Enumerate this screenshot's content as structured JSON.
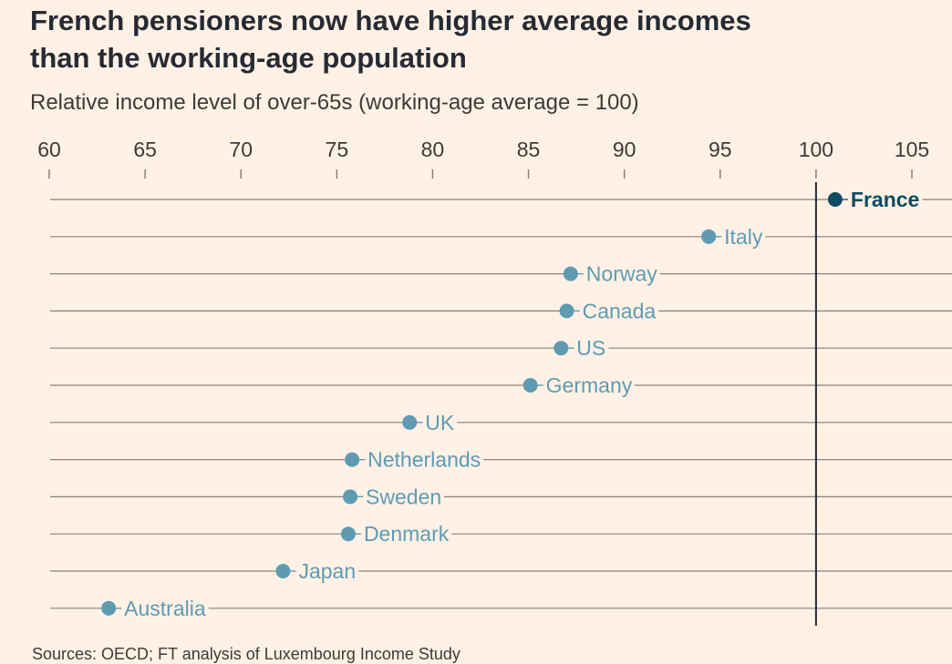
{
  "header": {
    "title_line1": "French pensioners now have higher average incomes",
    "title_line2": "than the working-age population",
    "subtitle": "Relative income level of over-65s (working-age average = 100)"
  },
  "footer": {
    "source": "Sources: OECD; FT analysis of Luxembourg Income Study"
  },
  "colors": {
    "background": "#FFF1E5",
    "point": "#5E9BB3",
    "highlight": "#0F4C63",
    "rule": "#8A8178",
    "reference": "#262A33"
  },
  "chart_data": {
    "type": "scatter",
    "title": "French pensioners now have higher average incomes than the working-age population",
    "subtitle": "Relative income level of over-65s (working-age average = 100)",
    "xlabel": "",
    "ylabel": "",
    "xlim": [
      60,
      105
    ],
    "xticks": [
      60,
      65,
      70,
      75,
      80,
      85,
      90,
      95,
      100,
      105
    ],
    "reference_line": 100,
    "legend": "none",
    "categories": [
      "France",
      "Italy",
      "Norway",
      "Canada",
      "US",
      "Germany",
      "UK",
      "Netherlands",
      "Sweden",
      "Denmark",
      "Japan",
      "Australia"
    ],
    "values": [
      101,
      94.4,
      87.2,
      87,
      86.7,
      85.1,
      78.8,
      75.8,
      75.7,
      75.6,
      72.2,
      63.1
    ],
    "highlight": "France"
  }
}
